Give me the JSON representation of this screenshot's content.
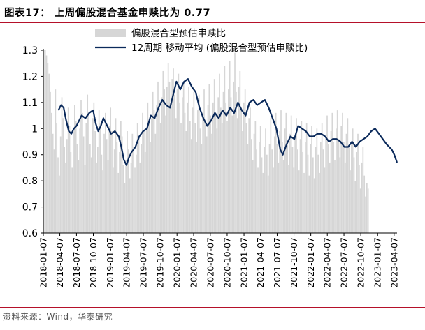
{
  "title": "图表17：  上周偏股混合基金申赎比为 0.77",
  "source": "资料来源：Wind，华泰研究",
  "colors": {
    "bars": "#d6d6d6",
    "line": "#0b2a5b",
    "rule": "#b5112a"
  },
  "chart_data": {
    "type": "bar+line",
    "ylim": [
      0.6,
      1.3
    ],
    "yticks": [
      "0.6",
      "0.7",
      "0.8",
      "0.9",
      "1",
      "1.1",
      "1.2",
      "1.3"
    ],
    "xlim": [
      "2018-01-07",
      "2023-04-23"
    ],
    "xticks": [
      "2018-01-07",
      "2018-04-07",
      "2018-07-07",
      "2018-10-07",
      "2019-01-07",
      "2019-04-07",
      "2019-07-07",
      "2019-10-07",
      "2020-01-07",
      "2020-04-07",
      "2020-07-07",
      "2020-10-07",
      "2021-01-07",
      "2021-04-07",
      "2021-07-07",
      "2021-10-07",
      "2022-01-07",
      "2022-04-07",
      "2022-07-07",
      "2022-10-07",
      "2023-01-07",
      "2023-04-07"
    ],
    "grid": false,
    "legend_position": "top",
    "series": [
      {
        "name": "偏股混合型预估申赎比",
        "kind": "bar",
        "start": "2018-01-07",
        "interval_days": 7,
        "values": [
          1.3,
          1.3,
          1.28,
          1.25,
          1.21,
          1.14,
          1.06,
          0.98,
          0.92,
          1.15,
          1.02,
          0.89,
          0.82,
          0.97,
          1.12,
          1.04,
          0.93,
          0.87,
          0.96,
          1.08,
          1.01,
          0.91,
          0.85,
          0.99,
          1.09,
          1.03,
          0.94,
          0.88,
          1.0,
          1.11,
          1.06,
          0.97,
          0.86,
          1.02,
          1.13,
          1.05,
          0.94,
          0.89,
          1.04,
          1.1,
          0.99,
          0.87,
          0.93,
          1.07,
          1.02,
          0.9,
          0.84,
          0.98,
          1.06,
          0.96,
          0.88,
          1.01,
          1.08,
          0.99,
          0.85,
          0.92,
          1.04,
          0.95,
          0.83,
          0.91,
          1.03,
          0.97,
          0.86,
          0.79,
          0.88,
          0.99,
          0.92,
          0.81,
          0.87,
          0.98,
          0.93,
          0.85,
          0.9,
          1.02,
          0.96,
          0.87,
          0.94,
          1.06,
          0.99,
          0.91,
          1.0,
          1.1,
          1.03,
          0.95,
          1.04,
          1.14,
          1.07,
          0.98,
          1.09,
          1.18,
          1.11,
          1.02,
          1.12,
          1.22,
          1.15,
          1.05,
          1.16,
          1.25,
          1.18,
          1.08,
          1.19,
          1.23,
          1.13,
          1.04,
          1.15,
          1.21,
          1.1,
          1.02,
          1.12,
          1.18,
          1.06,
          0.99,
          1.1,
          1.16,
          1.03,
          0.96,
          1.08,
          1.14,
          1.02,
          0.95,
          1.07,
          1.13,
          1.0,
          0.94,
          1.06,
          1.15,
          1.03,
          0.97,
          1.09,
          1.17,
          1.05,
          0.98,
          1.1,
          1.19,
          1.06,
          1.0,
          1.12,
          1.21,
          1.08,
          1.02,
          1.14,
          1.24,
          1.1,
          1.03,
          1.15,
          1.26,
          1.12,
          1.05,
          1.18,
          1.29,
          1.14,
          1.04,
          1.16,
          1.22,
          1.08,
          0.99,
          1.1,
          1.15,
          1.02,
          0.94,
          1.04,
          1.08,
          0.96,
          0.88,
          0.98,
          1.03,
          0.92,
          0.85,
          0.95,
          1.01,
          0.89,
          0.83,
          0.93,
          1.0,
          0.9,
          0.82,
          0.94,
          1.04,
          0.92,
          0.85,
          0.97,
          1.06,
          0.94,
          0.87,
          0.99,
          1.07,
          0.95,
          0.88,
          1.0,
          1.06,
          0.94,
          0.86,
          0.98,
          1.05,
          0.93,
          0.85,
          0.97,
          1.04,
          0.92,
          0.84,
          0.96,
          1.03,
          0.91,
          0.83,
          0.95,
          1.02,
          0.9,
          0.82,
          0.94,
          1.01,
          0.89,
          0.81,
          0.93,
          1.0,
          0.9,
          0.83,
          0.95,
          1.02,
          0.92,
          0.85,
          0.97,
          1.05,
          0.94,
          0.87,
          0.99,
          1.06,
          0.95,
          0.88,
          1.0,
          1.07,
          0.96,
          0.89,
          1.01,
          1.06,
          0.95,
          0.87,
          0.98,
          1.04,
          0.93,
          0.84,
          0.95,
          1.0,
          0.89,
          0.8,
          0.91,
          0.98,
          0.86,
          0.77,
          0.87,
          0.93,
          0.82,
          0.74,
          0.79,
          0.77
        ]
      },
      {
        "name": "12周期 移动平均 (偏股混合型预估申赎比)",
        "kind": "line",
        "points": [
          [
            "2018-03-30",
            1.07
          ],
          [
            "2018-04-14",
            1.09
          ],
          [
            "2018-04-28",
            1.08
          ],
          [
            "2018-05-12",
            1.03
          ],
          [
            "2018-05-26",
            0.99
          ],
          [
            "2018-06-09",
            0.98
          ],
          [
            "2018-06-23",
            1.0
          ],
          [
            "2018-07-07",
            1.01
          ],
          [
            "2018-07-21",
            1.03
          ],
          [
            "2018-08-04",
            1.05
          ],
          [
            "2018-08-25",
            1.04
          ],
          [
            "2018-09-15",
            1.06
          ],
          [
            "2018-10-06",
            1.07
          ],
          [
            "2018-10-20",
            1.02
          ],
          [
            "2018-11-03",
            0.99
          ],
          [
            "2018-11-17",
            1.01
          ],
          [
            "2018-12-01",
            1.04
          ],
          [
            "2018-12-22",
            1.01
          ],
          [
            "2019-01-12",
            0.98
          ],
          [
            "2019-02-02",
            0.99
          ],
          [
            "2019-02-23",
            0.97
          ],
          [
            "2019-03-09",
            0.93
          ],
          [
            "2019-03-23",
            0.88
          ],
          [
            "2019-04-06",
            0.86
          ],
          [
            "2019-04-20",
            0.89
          ],
          [
            "2019-05-04",
            0.91
          ],
          [
            "2019-05-25",
            0.93
          ],
          [
            "2019-06-15",
            0.97
          ],
          [
            "2019-07-06",
            0.99
          ],
          [
            "2019-07-27",
            1.0
          ],
          [
            "2019-08-17",
            1.05
          ],
          [
            "2019-09-07",
            1.04
          ],
          [
            "2019-09-28",
            1.08
          ],
          [
            "2019-10-19",
            1.11
          ],
          [
            "2019-11-09",
            1.09
          ],
          [
            "2019-11-30",
            1.08
          ],
          [
            "2019-12-14",
            1.12
          ],
          [
            "2020-01-04",
            1.18
          ],
          [
            "2020-01-25",
            1.15
          ],
          [
            "2020-02-15",
            1.18
          ],
          [
            "2020-03-07",
            1.19
          ],
          [
            "2020-03-28",
            1.16
          ],
          [
            "2020-04-18",
            1.14
          ],
          [
            "2020-05-09",
            1.08
          ],
          [
            "2020-05-30",
            1.04
          ],
          [
            "2020-06-20",
            1.01
          ],
          [
            "2020-07-11",
            1.03
          ],
          [
            "2020-08-01",
            1.06
          ],
          [
            "2020-08-22",
            1.04
          ],
          [
            "2020-09-12",
            1.07
          ],
          [
            "2020-10-03",
            1.05
          ],
          [
            "2020-10-24",
            1.08
          ],
          [
            "2020-11-14",
            1.06
          ],
          [
            "2020-12-05",
            1.1
          ],
          [
            "2020-12-26",
            1.07
          ],
          [
            "2021-01-16",
            1.05
          ],
          [
            "2021-02-06",
            1.1
          ],
          [
            "2021-02-27",
            1.11
          ],
          [
            "2021-03-20",
            1.09
          ],
          [
            "2021-04-10",
            1.1
          ],
          [
            "2021-05-01",
            1.11
          ],
          [
            "2021-05-22",
            1.08
          ],
          [
            "2021-06-12",
            1.04
          ],
          [
            "2021-07-03",
            1.0
          ],
          [
            "2021-07-24",
            0.92
          ],
          [
            "2021-08-07",
            0.9
          ],
          [
            "2021-08-28",
            0.94
          ],
          [
            "2021-09-18",
            0.97
          ],
          [
            "2021-10-09",
            0.96
          ],
          [
            "2021-10-30",
            1.01
          ],
          [
            "2021-11-20",
            1.0
          ],
          [
            "2021-12-11",
            0.99
          ],
          [
            "2022-01-01",
            0.97
          ],
          [
            "2022-01-22",
            0.97
          ],
          [
            "2022-02-12",
            0.98
          ],
          [
            "2022-03-05",
            0.98
          ],
          [
            "2022-03-26",
            0.97
          ],
          [
            "2022-04-16",
            0.95
          ],
          [
            "2022-05-07",
            0.96
          ],
          [
            "2022-05-28",
            0.96
          ],
          [
            "2022-06-18",
            0.95
          ],
          [
            "2022-07-09",
            0.93
          ],
          [
            "2022-07-30",
            0.93
          ],
          [
            "2022-08-20",
            0.95
          ],
          [
            "2022-09-10",
            0.93
          ],
          [
            "2022-10-01",
            0.95
          ],
          [
            "2022-10-22",
            0.96
          ],
          [
            "2022-11-12",
            0.97
          ],
          [
            "2022-12-03",
            0.99
          ],
          [
            "2022-12-24",
            1.0
          ],
          [
            "2023-01-14",
            0.98
          ],
          [
            "2023-02-04",
            0.96
          ],
          [
            "2023-02-25",
            0.94
          ],
          [
            "2023-03-11",
            0.93
          ],
          [
            "2023-03-25",
            0.92
          ],
          [
            "2023-04-08",
            0.9
          ],
          [
            "2023-04-23",
            0.87
          ]
        ]
      }
    ]
  }
}
